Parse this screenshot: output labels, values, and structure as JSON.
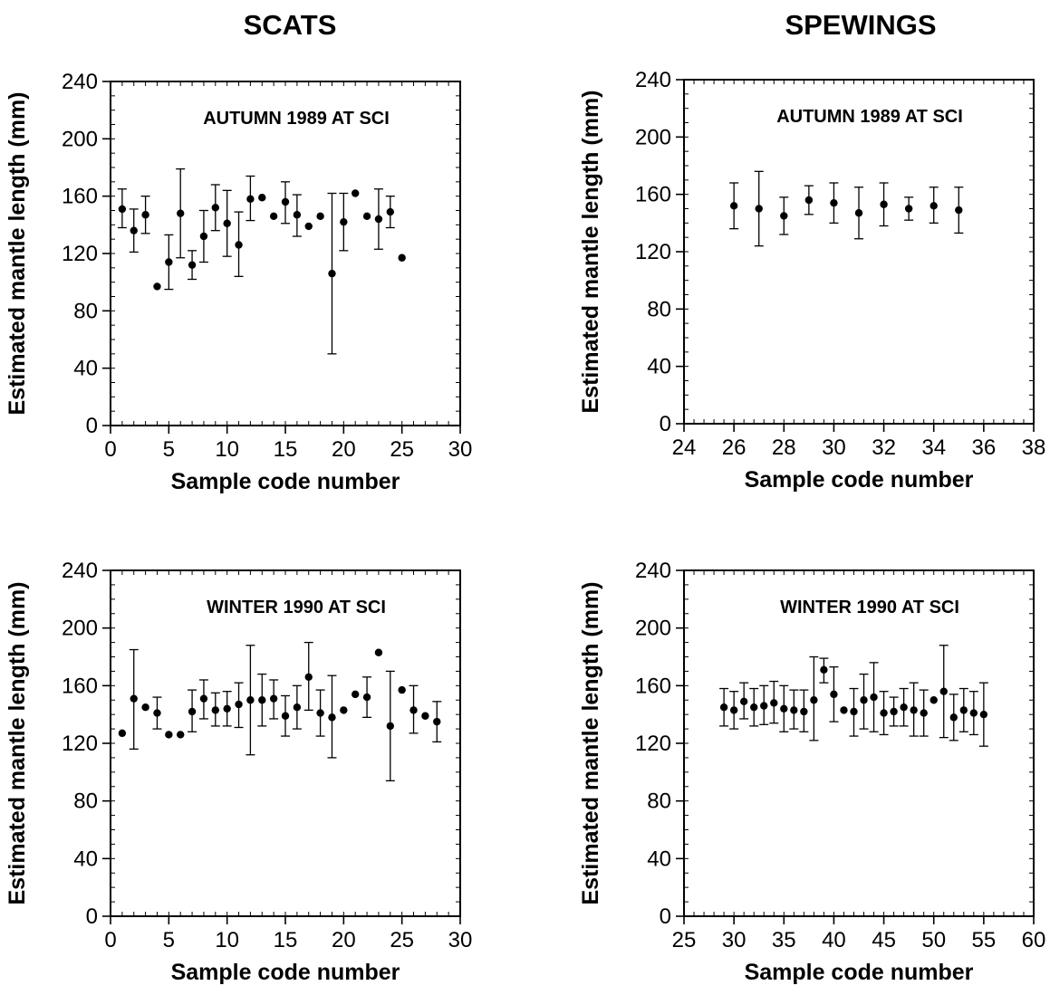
{
  "column_titles": [
    "SCATS",
    "SPEWINGS"
  ],
  "chart_data": [
    {
      "type": "scatter",
      "column": "SCATS",
      "title": "AUTUMN 1989 AT SCI",
      "xlabel": "Sample code number",
      "ylabel": "Estimated mantle length (mm)",
      "xlim": [
        0,
        30
      ],
      "ylim": [
        0,
        240
      ],
      "x_ticks": [
        0,
        5,
        10,
        15,
        20,
        25,
        30
      ],
      "y_ticks": [
        0,
        40,
        80,
        120,
        160,
        200,
        240
      ],
      "error_bars": true,
      "points": [
        {
          "x": 1,
          "y": 151,
          "lo": 138,
          "hi": 165
        },
        {
          "x": 2,
          "y": 136,
          "lo": 121,
          "hi": 151
        },
        {
          "x": 3,
          "y": 147,
          "lo": 134,
          "hi": 160
        },
        {
          "x": 4,
          "y": 97,
          "lo": null,
          "hi": null
        },
        {
          "x": 5,
          "y": 114,
          "lo": 95,
          "hi": 133
        },
        {
          "x": 6,
          "y": 148,
          "lo": 117,
          "hi": 179
        },
        {
          "x": 7,
          "y": 112,
          "lo": 102,
          "hi": 122
        },
        {
          "x": 8,
          "y": 132,
          "lo": 114,
          "hi": 150
        },
        {
          "x": 9,
          "y": 152,
          "lo": 136,
          "hi": 168
        },
        {
          "x": 10,
          "y": 141,
          "lo": 118,
          "hi": 164
        },
        {
          "x": 11,
          "y": 126,
          "lo": 104,
          "hi": 149
        },
        {
          "x": 12,
          "y": 158,
          "lo": 143,
          "hi": 174
        },
        {
          "x": 13,
          "y": 159,
          "lo": null,
          "hi": null
        },
        {
          "x": 14,
          "y": 146,
          "lo": null,
          "hi": null
        },
        {
          "x": 15,
          "y": 156,
          "lo": 141,
          "hi": 170
        },
        {
          "x": 16,
          "y": 147,
          "lo": 132,
          "hi": 161
        },
        {
          "x": 17,
          "y": 139,
          "lo": null,
          "hi": null
        },
        {
          "x": 18,
          "y": 146,
          "lo": null,
          "hi": null
        },
        {
          "x": 19,
          "y": 106,
          "lo": 50,
          "hi": 162
        },
        {
          "x": 20,
          "y": 142,
          "lo": 122,
          "hi": 162
        },
        {
          "x": 21,
          "y": 162,
          "lo": null,
          "hi": null
        },
        {
          "x": 22,
          "y": 146,
          "lo": null,
          "hi": null
        },
        {
          "x": 23,
          "y": 144,
          "lo": 123,
          "hi": 165
        },
        {
          "x": 24,
          "y": 149,
          "lo": 138,
          "hi": 160
        },
        {
          "x": 25,
          "y": 117,
          "lo": null,
          "hi": null
        }
      ]
    },
    {
      "type": "scatter",
      "column": "SPEWINGS",
      "title": "AUTUMN 1989 AT SCI",
      "xlabel": "Sample code number",
      "ylabel": "Estimated mantle length (mm)",
      "xlim": [
        24,
        38
      ],
      "ylim": [
        0,
        240
      ],
      "x_ticks": [
        24,
        26,
        28,
        30,
        32,
        34,
        36,
        38
      ],
      "y_ticks": [
        0,
        40,
        80,
        120,
        160,
        200,
        240
      ],
      "error_bars": true,
      "points": [
        {
          "x": 26,
          "y": 152,
          "lo": 136,
          "hi": 168
        },
        {
          "x": 27,
          "y": 150,
          "lo": 124,
          "hi": 176
        },
        {
          "x": 28,
          "y": 145,
          "lo": 132,
          "hi": 158
        },
        {
          "x": 29,
          "y": 156,
          "lo": 146,
          "hi": 166
        },
        {
          "x": 30,
          "y": 154,
          "lo": 140,
          "hi": 168
        },
        {
          "x": 31,
          "y": 147,
          "lo": 129,
          "hi": 165
        },
        {
          "x": 32,
          "y": 153,
          "lo": 138,
          "hi": 168
        },
        {
          "x": 33,
          "y": 150,
          "lo": 142,
          "hi": 158
        },
        {
          "x": 34,
          "y": 152,
          "lo": 140,
          "hi": 165
        },
        {
          "x": 35,
          "y": 149,
          "lo": 133,
          "hi": 165
        }
      ]
    },
    {
      "type": "scatter",
      "column": "SCATS",
      "title": "WINTER 1990 AT SCI",
      "xlabel": "Sample code number",
      "ylabel": "Estimated mantle length (mm)",
      "xlim": [
        0,
        30
      ],
      "ylim": [
        0,
        240
      ],
      "x_ticks": [
        0,
        5,
        10,
        15,
        20,
        25,
        30
      ],
      "y_ticks": [
        0,
        40,
        80,
        120,
        160,
        200,
        240
      ],
      "error_bars": true,
      "points": [
        {
          "x": 1,
          "y": 127,
          "lo": null,
          "hi": null
        },
        {
          "x": 2,
          "y": 151,
          "lo": 116,
          "hi": 185
        },
        {
          "x": 3,
          "y": 145,
          "lo": null,
          "hi": null
        },
        {
          "x": 4,
          "y": 141,
          "lo": 130,
          "hi": 152
        },
        {
          "x": 5,
          "y": 126,
          "lo": null,
          "hi": null
        },
        {
          "x": 6,
          "y": 126,
          "lo": null,
          "hi": null
        },
        {
          "x": 7,
          "y": 142,
          "lo": 128,
          "hi": 157
        },
        {
          "x": 8,
          "y": 151,
          "lo": 137,
          "hi": 164
        },
        {
          "x": 9,
          "y": 143,
          "lo": 132,
          "hi": 155
        },
        {
          "x": 10,
          "y": 144,
          "lo": 132,
          "hi": 156
        },
        {
          "x": 11,
          "y": 147,
          "lo": 131,
          "hi": 162
        },
        {
          "x": 12,
          "y": 150,
          "lo": 112,
          "hi": 188
        },
        {
          "x": 13,
          "y": 150,
          "lo": 132,
          "hi": 168
        },
        {
          "x": 14,
          "y": 151,
          "lo": 137,
          "hi": 164
        },
        {
          "x": 15,
          "y": 139,
          "lo": 125,
          "hi": 153
        },
        {
          "x": 16,
          "y": 145,
          "lo": 130,
          "hi": 160
        },
        {
          "x": 17,
          "y": 166,
          "lo": 143,
          "hi": 190
        },
        {
          "x": 18,
          "y": 141,
          "lo": 125,
          "hi": 157
        },
        {
          "x": 19,
          "y": 138,
          "lo": 110,
          "hi": 167
        },
        {
          "x": 20,
          "y": 143,
          "lo": null,
          "hi": null
        },
        {
          "x": 21,
          "y": 154,
          "lo": null,
          "hi": null
        },
        {
          "x": 22,
          "y": 152,
          "lo": 138,
          "hi": 166
        },
        {
          "x": 23,
          "y": 183,
          "lo": null,
          "hi": null
        },
        {
          "x": 24,
          "y": 132,
          "lo": 94,
          "hi": 170
        },
        {
          "x": 25,
          "y": 157,
          "lo": null,
          "hi": null
        },
        {
          "x": 26,
          "y": 143,
          "lo": 127,
          "hi": 160
        },
        {
          "x": 27,
          "y": 139,
          "lo": null,
          "hi": null
        },
        {
          "x": 28,
          "y": 135,
          "lo": 121,
          "hi": 149
        }
      ]
    },
    {
      "type": "scatter",
      "column": "SPEWINGS",
      "title": "WINTER 1990 AT SCI",
      "xlabel": "Sample code number",
      "ylabel": "Estimated mantle length (mm)",
      "xlim": [
        25,
        60
      ],
      "ylim": [
        0,
        240
      ],
      "x_ticks": [
        25,
        30,
        35,
        40,
        45,
        50,
        55,
        60
      ],
      "y_ticks": [
        0,
        40,
        80,
        120,
        160,
        200,
        240
      ],
      "error_bars": true,
      "points": [
        {
          "x": 29,
          "y": 145,
          "lo": 132,
          "hi": 158
        },
        {
          "x": 30,
          "y": 143,
          "lo": 130,
          "hi": 156
        },
        {
          "x": 31,
          "y": 149,
          "lo": 137,
          "hi": 162
        },
        {
          "x": 32,
          "y": 145,
          "lo": 132,
          "hi": 158
        },
        {
          "x": 33,
          "y": 146,
          "lo": 133,
          "hi": 160
        },
        {
          "x": 34,
          "y": 148,
          "lo": 134,
          "hi": 163
        },
        {
          "x": 35,
          "y": 144,
          "lo": 128,
          "hi": 160
        },
        {
          "x": 36,
          "y": 143,
          "lo": 130,
          "hi": 157
        },
        {
          "x": 37,
          "y": 142,
          "lo": 128,
          "hi": 157
        },
        {
          "x": 38,
          "y": 150,
          "lo": 122,
          "hi": 180
        },
        {
          "x": 39,
          "y": 171,
          "lo": 162,
          "hi": 179
        },
        {
          "x": 40,
          "y": 154,
          "lo": 135,
          "hi": 173
        },
        {
          "x": 41,
          "y": 143,
          "lo": null,
          "hi": null
        },
        {
          "x": 42,
          "y": 142,
          "lo": 125,
          "hi": 158
        },
        {
          "x": 43,
          "y": 150,
          "lo": 130,
          "hi": 168
        },
        {
          "x": 44,
          "y": 152,
          "lo": 128,
          "hi": 176
        },
        {
          "x": 45,
          "y": 141,
          "lo": 126,
          "hi": 156
        },
        {
          "x": 46,
          "y": 142,
          "lo": 132,
          "hi": 152
        },
        {
          "x": 47,
          "y": 145,
          "lo": 132,
          "hi": 158
        },
        {
          "x": 48,
          "y": 143,
          "lo": 125,
          "hi": 162
        },
        {
          "x": 49,
          "y": 141,
          "lo": 125,
          "hi": 157
        },
        {
          "x": 50,
          "y": 150,
          "lo": null,
          "hi": null
        },
        {
          "x": 51,
          "y": 156,
          "lo": 124,
          "hi": 188
        },
        {
          "x": 52,
          "y": 138,
          "lo": 122,
          "hi": 154
        },
        {
          "x": 53,
          "y": 143,
          "lo": 128,
          "hi": 158
        },
        {
          "x": 54,
          "y": 141,
          "lo": 126,
          "hi": 156
        },
        {
          "x": 55,
          "y": 140,
          "lo": 118,
          "hi": 162
        }
      ]
    }
  ]
}
